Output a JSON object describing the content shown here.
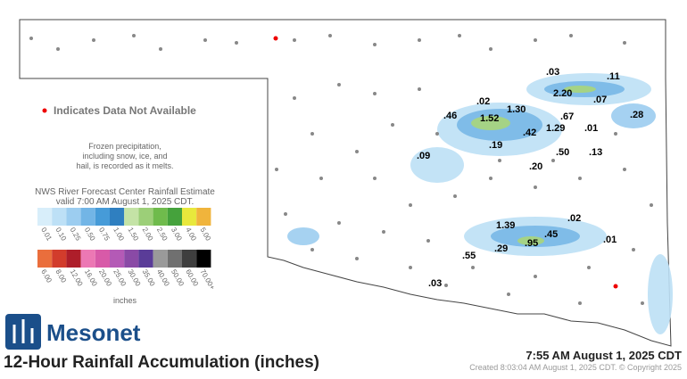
{
  "header": {
    "title": "12-Hour Rainfall Accumulation (inches)",
    "timestamp": "7:55 AM August 1, 2025 CDT",
    "created": "Created 8:03:04 AM August 1, 2025 CDT. © Copyright 2025",
    "logo": "Mesonet"
  },
  "notes": {
    "not_available": "Indicates Data Not Available",
    "frozen": [
      "Frozen precipitation,",
      "including snow, ice, and",
      "hail, is recorded as it melts."
    ]
  },
  "legend": {
    "title": [
      "NWS River Forecast Center Rainfall Estimate",
      "valid 7:00 AM August 1, 2025 CDT."
    ],
    "rows": [
      {
        "labels": [
          "0.01",
          "0.10",
          "0.25",
          "0.50",
          "0.75",
          "1.00",
          "1.50",
          "2.00",
          "2.50",
          "3.00",
          "4.00",
          "5.00"
        ],
        "colors": [
          "#d8eefa",
          "#bde0f6",
          "#9ccdf0",
          "#72b5e6",
          "#469bd8",
          "#2f7fc0",
          "#c4e3a6",
          "#9ccf78",
          "#6fbb4c",
          "#45a23c",
          "#e8e83c",
          "#f0b43c"
        ]
      },
      {
        "labels": [
          "6.00",
          "8.00",
          "12.00",
          "16.00",
          "20.00",
          "25.00",
          "30.00",
          "35.00",
          "40.00",
          "50.00",
          "60.00",
          "70.00+"
        ],
        "colors": [
          "#ea6e3c",
          "#d23c2c",
          "#ae1e2a",
          "#ec78b4",
          "#d85aa8",
          "#b45ab6",
          "#8a4aa6",
          "#5a3c98",
          "#9a9a9a",
          "#707070",
          "#3e3e3e",
          "#000000"
        ]
      }
    ],
    "units": "inches"
  },
  "stations": [
    ".03",
    ".11",
    "2.20",
    ".07",
    ".02",
    ".46",
    "1.30",
    "1.52",
    ".67",
    ".28",
    "1.29",
    ".01",
    ".42",
    ".19",
    ".50",
    ".13",
    ".09",
    ".20",
    "1.39",
    ".02",
    ".45",
    ".01",
    ".29",
    ".95",
    ".55",
    ".03"
  ]
}
